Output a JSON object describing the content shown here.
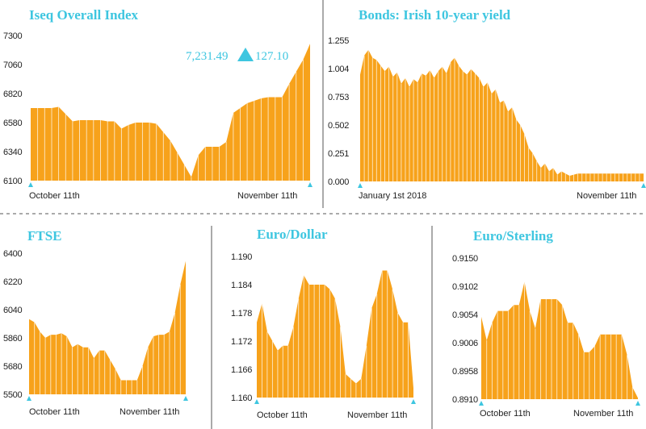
{
  "chart_data": [
    {
      "type": "area",
      "title": "Iseq Overall Index",
      "x_labels": [
        "October 11th",
        "November 11th"
      ],
      "y_ticks": [
        "7300",
        "7060",
        "6820",
        "6580",
        "6340",
        "6100"
      ],
      "ylim": [
        6100,
        7300
      ],
      "values": [
        6700,
        6700,
        6700,
        6700,
        6710,
        6650,
        6590,
        6600,
        6600,
        6600,
        6600,
        6590,
        6590,
        6530,
        6560,
        6580,
        6580,
        6580,
        6570,
        6500,
        6430,
        6330,
        6230,
        6130,
        6310,
        6380,
        6380,
        6380,
        6420,
        6660,
        6700,
        6740,
        6760,
        6780,
        6790,
        6790,
        6790,
        6900,
        7000,
        7100,
        7231
      ],
      "annotation": {
        "value": "7,231.49",
        "change": "127.10",
        "direction": "up"
      },
      "color": "#f7a21b"
    },
    {
      "type": "area",
      "title": "Bonds: Irish 10-year yield",
      "x_labels": [
        "January 1st 2018",
        "November 11th"
      ],
      "y_ticks": [
        "1.255",
        "1.004",
        "0.753",
        "0.502",
        "0.251",
        "0.000"
      ],
      "ylim": [
        0,
        1.255
      ],
      "values": [
        0.95,
        1.12,
        1.17,
        1.1,
        1.08,
        1.03,
        0.98,
        1.02,
        0.93,
        0.97,
        0.87,
        0.92,
        0.84,
        0.91,
        0.88,
        0.96,
        0.94,
        0.99,
        0.92,
        0.98,
        1.02,
        0.96,
        1.06,
        1.1,
        1.03,
        0.98,
        0.95,
        1.0,
        0.96,
        0.92,
        0.84,
        0.88,
        0.78,
        0.82,
        0.7,
        0.72,
        0.62,
        0.66,
        0.55,
        0.5,
        0.42,
        0.3,
        0.25,
        0.18,
        0.12,
        0.16,
        0.09,
        0.12,
        0.06,
        0.09,
        0.07,
        0.05,
        0.06,
        0.07,
        0.07,
        0.07,
        0.07,
        0.07,
        0.07,
        0.07,
        0.07,
        0.07,
        0.07,
        0.07,
        0.07,
        0.07,
        0.07,
        0.07,
        0.07,
        0.07
      ],
      "color": "#f7a21b"
    },
    {
      "type": "area",
      "title": "FTSE",
      "x_labels": [
        "October 11th",
        "November 11th"
      ],
      "y_ticks": [
        "6400",
        "6220",
        "6040",
        "5860",
        "5680",
        "5500"
      ],
      "ylim": [
        5500,
        6400
      ],
      "values": [
        5980,
        5960,
        5900,
        5860,
        5880,
        5880,
        5890,
        5870,
        5800,
        5820,
        5800,
        5800,
        5730,
        5780,
        5780,
        5720,
        5660,
        5590,
        5590,
        5590,
        5590,
        5680,
        5800,
        5870,
        5880,
        5880,
        5900,
        6020,
        6200,
        6350
      ],
      "color": "#f7a21b"
    },
    {
      "type": "area",
      "title": "Euro/Dollar",
      "x_labels": [
        "October 11th",
        "November 11th"
      ],
      "y_ticks": [
        "1.190",
        "1.184",
        "1.178",
        "1.172",
        "1.166",
        "1.160"
      ],
      "ylim": [
        1.16,
        1.19
      ],
      "values": [
        1.176,
        1.18,
        1.174,
        1.172,
        1.17,
        1.171,
        1.171,
        1.175,
        1.181,
        1.186,
        1.184,
        1.184,
        1.184,
        1.184,
        1.183,
        1.181,
        1.175,
        1.165,
        1.164,
        1.163,
        1.164,
        1.171,
        1.179,
        1.182,
        1.187,
        1.187,
        1.183,
        1.178,
        1.176,
        1.176,
        1.162
      ],
      "color": "#f7a21b"
    },
    {
      "type": "area",
      "title": "Euro/Sterling",
      "x_labels": [
        "October 11th",
        "November 11th"
      ],
      "y_ticks": [
        "0.9150",
        "0.9102",
        "0.9054",
        "0.9006",
        "0.8958",
        "0.8910"
      ],
      "ylim": [
        0.891,
        0.915
      ],
      "values": [
        0.905,
        0.901,
        0.904,
        0.906,
        0.906,
        0.906,
        0.907,
        0.907,
        0.911,
        0.906,
        0.903,
        0.908,
        0.908,
        0.908,
        0.908,
        0.907,
        0.904,
        0.904,
        0.902,
        0.899,
        0.899,
        0.9,
        0.902,
        0.902,
        0.902,
        0.902,
        0.902,
        0.8985,
        0.893,
        0.8912
      ],
      "color": "#f7a21b"
    }
  ],
  "style": {
    "fill": "#f7a21b",
    "stripe": "#ffffff",
    "accent": "#3ec6e0"
  },
  "icons": {
    "marker": "teal-triangle-marker-icon",
    "up_arrow": "up-arrow-icon"
  }
}
